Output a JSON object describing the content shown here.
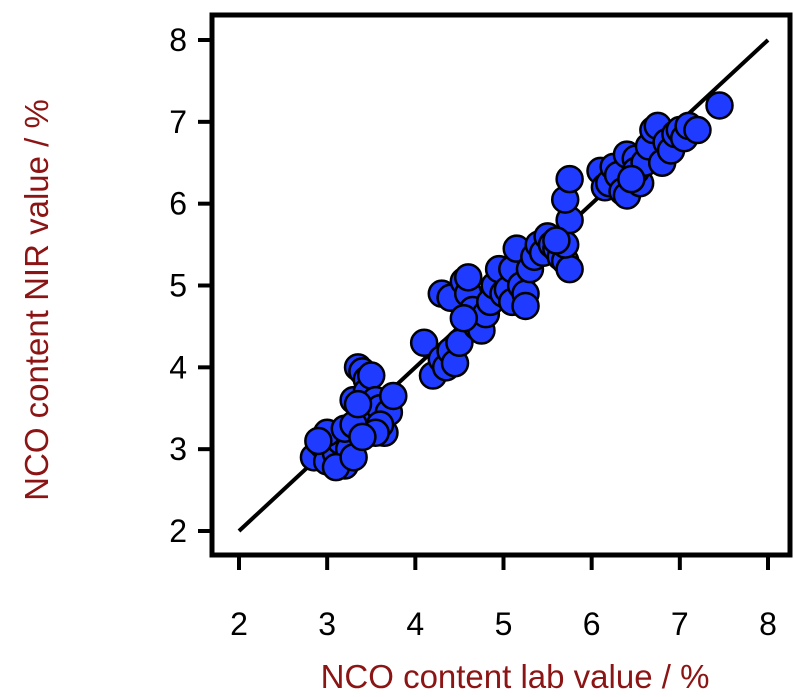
{
  "chart_data": {
    "type": "scatter",
    "title": "",
    "xlabel": "NCO content lab value / %",
    "ylabel": "NCO content NIR value / %",
    "xlim": [
      2,
      8
    ],
    "ylim": [
      2,
      8
    ],
    "x_ticks": [
      "2",
      "3",
      "4",
      "5",
      "6",
      "7",
      "8"
    ],
    "y_ticks": [
      "2",
      "3",
      "4",
      "5",
      "6",
      "7",
      "8"
    ],
    "grid": false,
    "colors": {
      "points": "#1f3bff",
      "point_edge": "#000000",
      "axis_title": "#8b1414",
      "line": "#000000"
    },
    "reference_line": {
      "x": [
        2,
        8
      ],
      "y": [
        2,
        8
      ]
    },
    "series": [
      {
        "values": [
          [
            2.85,
            2.9
          ],
          [
            2.95,
            3.05
          ],
          [
            3.0,
            2.85
          ],
          [
            3.05,
            3.15
          ],
          [
            3.1,
            2.95
          ],
          [
            3.15,
            3.1
          ],
          [
            3.2,
            2.8
          ],
          [
            3.0,
            3.2
          ],
          [
            3.25,
            3.0
          ],
          [
            2.9,
            3.1
          ],
          [
            3.1,
            2.78
          ],
          [
            3.3,
            2.9
          ],
          [
            3.2,
            3.25
          ],
          [
            3.3,
            3.6
          ],
          [
            3.35,
            4.0
          ],
          [
            3.4,
            3.95
          ],
          [
            3.45,
            3.85
          ],
          [
            3.45,
            3.7
          ],
          [
            3.5,
            3.4
          ],
          [
            3.4,
            3.45
          ],
          [
            3.45,
            3.3
          ],
          [
            3.5,
            3.9
          ],
          [
            3.55,
            3.6
          ],
          [
            3.6,
            3.5
          ],
          [
            3.65,
            3.2
          ],
          [
            3.7,
            3.45
          ],
          [
            3.75,
            3.65
          ],
          [
            3.6,
            3.3
          ],
          [
            3.55,
            3.2
          ],
          [
            3.3,
            3.3
          ],
          [
            3.4,
            3.15
          ],
          [
            3.35,
            3.55
          ],
          [
            4.1,
            4.3
          ],
          [
            4.2,
            3.9
          ],
          [
            4.3,
            4.1
          ],
          [
            4.35,
            4.0
          ],
          [
            4.3,
            4.9
          ],
          [
            4.4,
            4.85
          ],
          [
            4.4,
            4.2
          ],
          [
            4.45,
            4.05
          ],
          [
            4.5,
            4.3
          ],
          [
            4.55,
            5.05
          ],
          [
            4.6,
            4.9
          ],
          [
            4.6,
            5.1
          ],
          [
            4.65,
            4.7
          ],
          [
            4.7,
            4.5
          ],
          [
            4.75,
            4.45
          ],
          [
            4.8,
            4.65
          ],
          [
            4.85,
            4.8
          ],
          [
            4.55,
            4.6
          ],
          [
            4.9,
            5.0
          ],
          [
            4.95,
            5.2
          ],
          [
            5.0,
            4.9
          ],
          [
            5.05,
            4.95
          ],
          [
            5.1,
            5.2
          ],
          [
            5.1,
            4.8
          ],
          [
            5.15,
            5.45
          ],
          [
            5.2,
            5.0
          ],
          [
            5.25,
            4.9
          ],
          [
            5.25,
            4.75
          ],
          [
            5.3,
            5.2
          ],
          [
            5.35,
            5.35
          ],
          [
            5.4,
            5.5
          ],
          [
            5.45,
            5.4
          ],
          [
            5.5,
            5.6
          ],
          [
            5.55,
            5.5
          ],
          [
            5.6,
            5.45
          ],
          [
            5.65,
            5.35
          ],
          [
            5.7,
            5.3
          ],
          [
            5.75,
            5.2
          ],
          [
            5.7,
            5.5
          ],
          [
            5.75,
            5.8
          ],
          [
            5.7,
            6.05
          ],
          [
            5.75,
            6.3
          ],
          [
            5.6,
            5.55
          ],
          [
            6.1,
            6.4
          ],
          [
            6.15,
            6.2
          ],
          [
            6.2,
            6.25
          ],
          [
            6.25,
            6.45
          ],
          [
            6.3,
            6.35
          ],
          [
            6.35,
            6.15
          ],
          [
            6.4,
            6.1
          ],
          [
            6.4,
            6.6
          ],
          [
            6.5,
            6.55
          ],
          [
            6.55,
            6.25
          ],
          [
            6.5,
            6.4
          ],
          [
            6.6,
            6.5
          ],
          [
            6.65,
            6.7
          ],
          [
            6.7,
            6.9
          ],
          [
            6.75,
            6.95
          ],
          [
            6.8,
            6.5
          ],
          [
            6.85,
            6.75
          ],
          [
            6.9,
            6.65
          ],
          [
            6.95,
            6.85
          ],
          [
            7.0,
            6.9
          ],
          [
            7.05,
            6.8
          ],
          [
            7.1,
            6.95
          ],
          [
            7.2,
            6.9
          ],
          [
            7.45,
            7.2
          ],
          [
            6.45,
            6.3
          ]
        ]
      }
    ]
  }
}
